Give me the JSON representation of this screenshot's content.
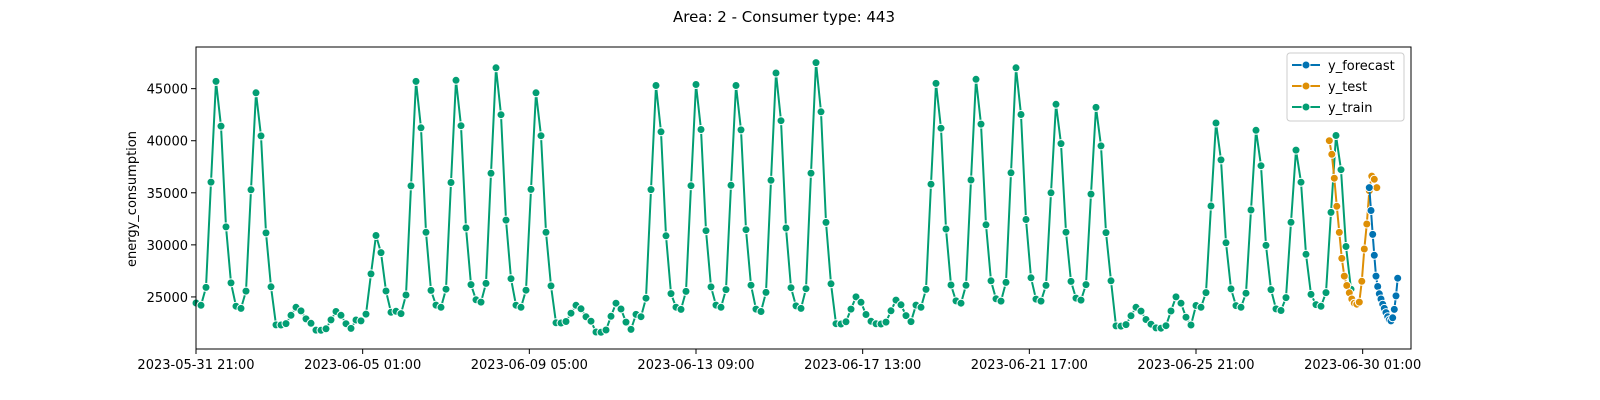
{
  "chart_data": {
    "type": "line",
    "title": "Area: 2 - Consumer type: 443",
    "xlabel": "",
    "ylabel": "energy_consumption",
    "x_tick_labels": [
      "2023-05-31 21:00",
      "2023-06-05 01:00",
      "2023-06-09 05:00",
      "2023-06-13 09:00",
      "2023-06-17 13:00",
      "2023-06-21 17:00",
      "2023-06-25 21:00",
      "2023-06-30 01:00"
    ],
    "x_range": [
      "2023-05-31 21:00",
      "2023-07-01 06:00"
    ],
    "y_ticks": [
      25000,
      30000,
      35000,
      40000,
      45000
    ],
    "ylim": [
      20000,
      49000
    ],
    "grid": false,
    "legend_position": "top-right",
    "series": [
      {
        "name": "y_forecast",
        "color": "#0173b2",
        "start": "2023-06-30 05:00",
        "values": [
          35500,
          33300,
          31000,
          29000,
          27000,
          26000,
          25300,
          24800,
          24300,
          23900,
          23500,
          23100,
          22800,
          22700,
          23000,
          23800,
          25100,
          26800
        ]
      },
      {
        "name": "y_test",
        "color": "#de8f05",
        "start": "2023-06-29 05:00",
        "values": [
          40000,
          38700,
          36400,
          33700,
          31200,
          28700,
          27000,
          26100,
          25400,
          24800,
          24400,
          24300,
          24500,
          26500,
          29600,
          32000,
          35200,
          36600,
          36300,
          35500
        ]
      },
      {
        "name": "y_train",
        "color": "#029e73",
        "start": "2023-05-31 21:00",
        "day_profiles": [
          {
            "min": 24200,
            "peak": 45700
          },
          {
            "min": 23900,
            "peak": 44600
          },
          {
            "min": 22300,
            "peak": 24000
          },
          {
            "min": 21800,
            "peak": 23600
          },
          {
            "min": 22700,
            "peak": 30900
          },
          {
            "min": 23400,
            "peak": 45700
          },
          {
            "min": 24000,
            "peak": 45800
          },
          {
            "min": 24500,
            "peak": 47000
          },
          {
            "min": 24000,
            "peak": 44600
          },
          {
            "min": 22500,
            "peak": 24200
          },
          {
            "min": 21600,
            "peak": 24400
          },
          {
            "min": 23100,
            "peak": 45300
          },
          {
            "min": 23800,
            "peak": 45400
          },
          {
            "min": 24000,
            "peak": 45300
          },
          {
            "min": 23600,
            "peak": 46500
          },
          {
            "min": 23900,
            "peak": 47500
          },
          {
            "min": 22400,
            "peak": 25000
          },
          {
            "min": 22400,
            "peak": 24700
          },
          {
            "min": 24000,
            "peak": 45500
          },
          {
            "min": 24400,
            "peak": 45900
          },
          {
            "min": 24600,
            "peak": 47000
          },
          {
            "min": 24600,
            "peak": 43500
          },
          {
            "min": 24700,
            "peak": 43200
          },
          {
            "min": 22200,
            "peak": 24000
          },
          {
            "min": 22000,
            "peak": 25000
          },
          {
            "min": 24000,
            "peak": 41700
          },
          {
            "min": 24000,
            "peak": 41000
          },
          {
            "min": 23700,
            "peak": 39100
          },
          {
            "min": 24100,
            "peak": 40500
          }
        ]
      }
    ]
  },
  "legend": {
    "items": [
      {
        "label": "y_forecast",
        "color": "#0173b2"
      },
      {
        "label": "y_test",
        "color": "#de8f05"
      },
      {
        "label": "y_train",
        "color": "#029e73"
      }
    ]
  }
}
